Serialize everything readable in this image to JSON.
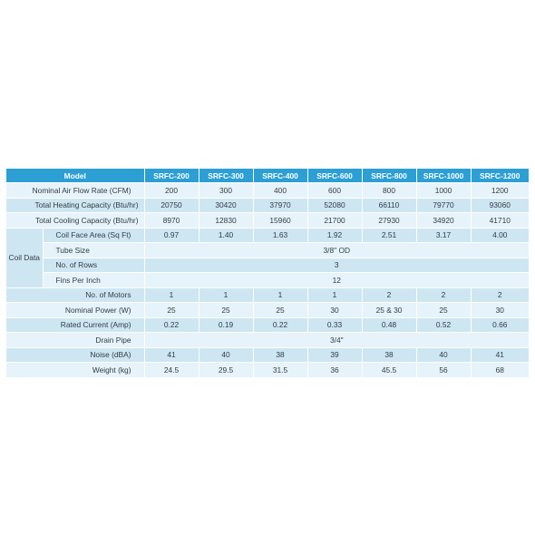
{
  "header": {
    "model_label": "Model",
    "models": [
      "SRFC-200",
      "SRFC-300",
      "SRFC-400",
      "SRFC-600",
      "SRFC-800",
      "SRFC-1000",
      "SRFC-1200"
    ]
  },
  "rows": {
    "airflow": {
      "label": "Nominal Air Flow Rate (CFM)",
      "values": [
        "200",
        "300",
        "400",
        "600",
        "800",
        "1000",
        "1200"
      ]
    },
    "heating": {
      "label": "Total Heating Capacity (Btu/hr)",
      "values": [
        "20750",
        "30420",
        "37970",
        "52080",
        "66110",
        "79770",
        "93060"
      ]
    },
    "cooling": {
      "label": "Total Cooling Capacity (Btu/hr)",
      "values": [
        "8970",
        "12830",
        "15960",
        "21700",
        "27930",
        "34920",
        "41710"
      ]
    },
    "coil_group_label": "Coil Data",
    "coil_face": {
      "label": "Coil Face Area (Sq Ft)",
      "values": [
        "0.97",
        "1.40",
        "1.63",
        "1.92",
        "2.51",
        "3.17",
        "4.00"
      ]
    },
    "tube_size": {
      "label": "Tube Size",
      "value": "3/8\" OD"
    },
    "rows_count": {
      "label": "No. of Rows",
      "value": "3"
    },
    "fins": {
      "label": "Fins Per Inch",
      "value": "12"
    },
    "motors": {
      "label": "No. of  Motors",
      "values": [
        "1",
        "1",
        "1",
        "1",
        "2",
        "2",
        "2"
      ]
    },
    "power": {
      "label": "Nominal Power (W)",
      "values": [
        "25",
        "25",
        "25",
        "30",
        "25 & 30",
        "25",
        "30"
      ]
    },
    "current": {
      "label": "Rated Current (Amp)",
      "values": [
        "0.22",
        "0.19",
        "0.22",
        "0.33",
        "0.48",
        "0.52",
        "0.66"
      ]
    },
    "drain": {
      "label": "Drain Pipe",
      "value": "3/4\""
    },
    "noise": {
      "label": "Noise (dBA)",
      "values": [
        "41",
        "40",
        "38",
        "39",
        "38",
        "40",
        "41"
      ]
    },
    "weight": {
      "label": "Weight (kg)",
      "values": [
        "24.5",
        "29.5",
        "31.5",
        "36",
        "45.5",
        "56",
        "68"
      ]
    }
  },
  "colors": {
    "header_bg": "#2c9fd5",
    "row_light": "#e6f3fa",
    "row_mid": "#cde6f2",
    "text": "#333c44"
  }
}
